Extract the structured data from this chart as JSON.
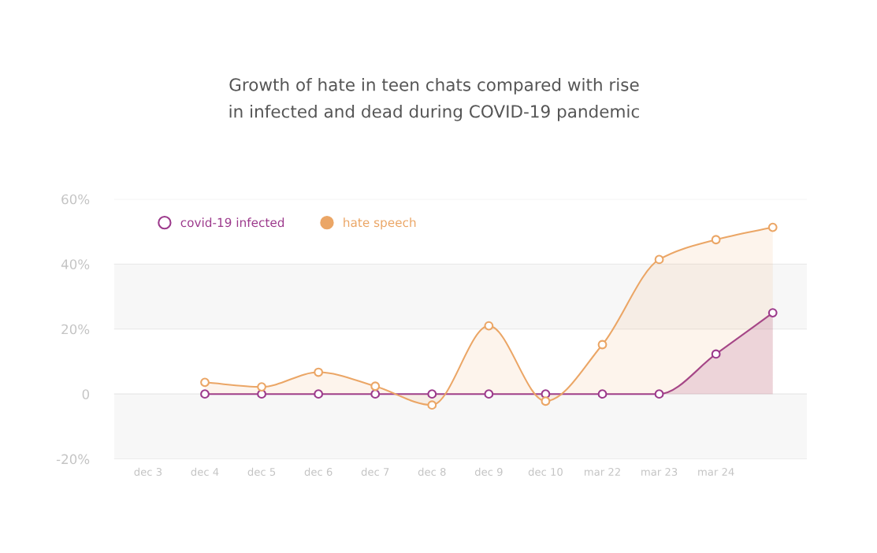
{
  "chart_data": {
    "type": "area",
    "title": "Growth of hate in teen chats compared with rise\nin infected and dead during COVID-19 pandemic",
    "categories": [
      "dec 3",
      "dec 4",
      "dec 5",
      "dec 6",
      "dec 7",
      "dec 8",
      "dec 9",
      "dec 10",
      "mar 22",
      "mar 23",
      "mar 24",
      null
    ],
    "series": [
      {
        "name": "covid-19 infected",
        "color": "#9c3a8c",
        "values": [
          null,
          0,
          0,
          0,
          0,
          0,
          0,
          0,
          0,
          0,
          12.3,
          25
        ]
      },
      {
        "name": "hate speech",
        "color": "#eba666",
        "values": [
          null,
          3.6,
          2.2,
          6.7,
          2.4,
          -3.4,
          21,
          -2.2,
          15.2,
          41.4,
          47.5,
          51.3
        ]
      }
    ],
    "ylim": [
      -20,
      60
    ],
    "yticks": [
      {
        "value": -20,
        "label": "-20%"
      },
      0,
      {
        "value": 20,
        "label": "20%"
      },
      {
        "value": 40,
        "label": "40%"
      },
      {
        "value": 60,
        "label": "60%"
      }
    ],
    "bands": [
      {
        "axis": "y",
        "from": 20,
        "to": 40,
        "color": "#f7f7f7"
      },
      {
        "axis": "y",
        "from": -20,
        "to": 0,
        "color": "#f7f7f7"
      }
    ],
    "grid": "y",
    "legend": "top left",
    "marker": "circle",
    "line_style": "solid"
  }
}
